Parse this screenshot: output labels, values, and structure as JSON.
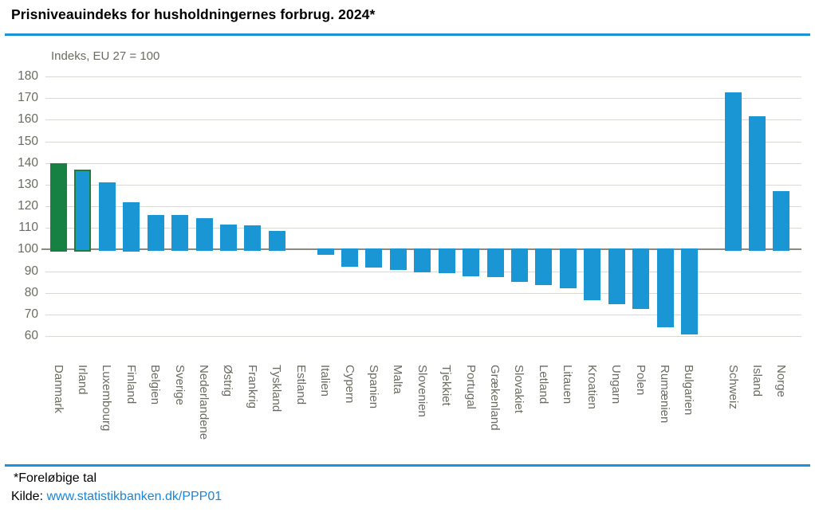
{
  "header": {
    "title": "Prisniveauindeks for husholdningernes forbrug. 2024*"
  },
  "chart_data": {
    "type": "bar",
    "title": "Prisniveauindeks for husholdningernes forbrug. 2024*",
    "subtitle": "Indeks, EU 27 = 100",
    "xlabel": "",
    "ylabel": "Indeks, EU 27 = 100",
    "ylim": [
      60,
      180
    ],
    "ytick_step": 10,
    "yticks": [
      60,
      70,
      80,
      90,
      100,
      110,
      120,
      130,
      140,
      150,
      160,
      170,
      180
    ],
    "reference_line": 100,
    "grid": true,
    "legend": "none",
    "categories": [
      "Danmark",
      "Irland",
      "Luxembourg",
      "Finland",
      "Belgien",
      "Sverige",
      "Nederlandene",
      "Østrig",
      "Frankrig",
      "Tyskland",
      "Estland",
      "Italien",
      "Cypern",
      "Spanien",
      "Malta",
      "Slovenien",
      "Tjekkiet",
      "Portugal",
      "Grækenland",
      "Slovakiet",
      "Letland",
      "Litauen",
      "Kroatien",
      "Ungarn",
      "Polen",
      "Rumænien",
      "Bulgarien",
      "Schweiz",
      "Island",
      "Norge"
    ],
    "values": [
      140,
      137,
      131,
      122,
      116,
      116,
      114.5,
      111.5,
      111,
      108.5,
      100,
      97.5,
      92,
      91.5,
      90.5,
      89.5,
      89,
      87.5,
      87,
      85,
      83.5,
      82,
      76.5,
      74.5,
      72.5,
      64,
      60.5,
      172.5,
      161.5,
      127
    ],
    "bars": [
      {
        "name": "Danmark",
        "value": 140,
        "style": "green",
        "group": "eu"
      },
      {
        "name": "Irland",
        "value": 137,
        "style": "outlined",
        "group": "eu"
      },
      {
        "name": "Luxembourg",
        "value": 131,
        "style": "blue",
        "group": "eu"
      },
      {
        "name": "Finland",
        "value": 122,
        "style": "blue",
        "group": "eu"
      },
      {
        "name": "Belgien",
        "value": 116,
        "style": "blue",
        "group": "eu"
      },
      {
        "name": "Sverige",
        "value": 116,
        "style": "blue",
        "group": "eu"
      },
      {
        "name": "Nederlandene",
        "value": 114.5,
        "style": "blue",
        "group": "eu"
      },
      {
        "name": "Østrig",
        "value": 111.5,
        "style": "blue",
        "group": "eu"
      },
      {
        "name": "Frankrig",
        "value": 111,
        "style": "blue",
        "group": "eu"
      },
      {
        "name": "Tyskland",
        "value": 108.5,
        "style": "blue",
        "group": "eu"
      },
      {
        "name": "Estland",
        "value": 100,
        "style": "blue",
        "group": "eu"
      },
      {
        "name": "Italien",
        "value": 97.5,
        "style": "blue",
        "group": "eu"
      },
      {
        "name": "Cypern",
        "value": 92,
        "style": "blue",
        "group": "eu"
      },
      {
        "name": "Spanien",
        "value": 91.5,
        "style": "blue",
        "group": "eu"
      },
      {
        "name": "Malta",
        "value": 90.5,
        "style": "blue",
        "group": "eu"
      },
      {
        "name": "Slovenien",
        "value": 89.5,
        "style": "blue",
        "group": "eu"
      },
      {
        "name": "Tjekkiet",
        "value": 89,
        "style": "blue",
        "group": "eu"
      },
      {
        "name": "Portugal",
        "value": 87.5,
        "style": "blue",
        "group": "eu"
      },
      {
        "name": "Grækenland",
        "value": 87,
        "style": "blue",
        "group": "eu"
      },
      {
        "name": "Slovakiet",
        "value": 85,
        "style": "blue",
        "group": "eu"
      },
      {
        "name": "Letland",
        "value": 83.5,
        "style": "blue",
        "group": "eu"
      },
      {
        "name": "Litauen",
        "value": 82,
        "style": "blue",
        "group": "eu"
      },
      {
        "name": "Kroatien",
        "value": 76.5,
        "style": "blue",
        "group": "eu"
      },
      {
        "name": "Ungarn",
        "value": 74.5,
        "style": "blue",
        "group": "eu"
      },
      {
        "name": "Polen",
        "value": 72.5,
        "style": "blue",
        "group": "eu"
      },
      {
        "name": "Rumænien",
        "value": 64,
        "style": "blue",
        "group": "eu"
      },
      {
        "name": "Bulgarien",
        "value": 60.5,
        "style": "blue",
        "group": "eu"
      },
      {
        "name": "Schweiz",
        "value": 172.5,
        "style": "blue",
        "group": "non-eu"
      },
      {
        "name": "Island",
        "value": 161.5,
        "style": "blue",
        "group": "non-eu"
      },
      {
        "name": "Norge",
        "value": 127,
        "style": "blue",
        "group": "non-eu"
      }
    ]
  },
  "footer": {
    "note": "*Foreløbige tal",
    "source_label": "Kilde: ",
    "source_link": "www.statistikbanken.dk/PPP01"
  },
  "colors": {
    "bar_blue": "#1a96d4",
    "bar_green": "#168142",
    "rule_blue": "#1b93d8",
    "link_blue": "#1a85d9",
    "gridline": "#d9d9d3",
    "baseline": "#8a8a80",
    "axis_text": "#6b6b61"
  }
}
